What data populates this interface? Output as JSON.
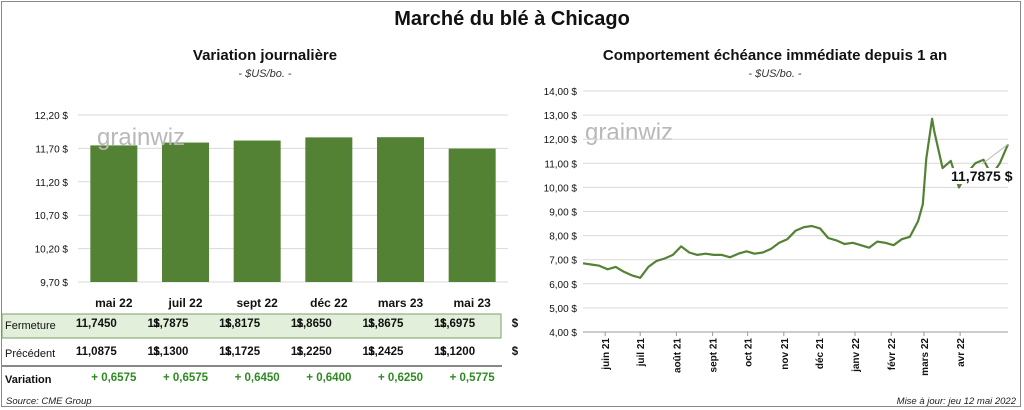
{
  "header": {
    "title": "Marché du blé à Chicago"
  },
  "left": {
    "title": "Variation  journalière",
    "unit": "- $US/bo. -"
  },
  "right": {
    "title": "Comportement  échéance immédiate depuis 1 an",
    "unit": "- $US/bo. -",
    "last_value_label": "11,7875 $"
  },
  "watermark": "grainwiz",
  "table": {
    "row_labels": [
      "Fermeture",
      "Précédent",
      "Variation"
    ],
    "fermeture": [
      "11,7450",
      "11,7875",
      "11,8175",
      "11,8650",
      "11,8675",
      "11,6975"
    ],
    "precedent": [
      "11,0875",
      "11,1300",
      "11,1725",
      "11,2250",
      "11,2425",
      "11,1200"
    ],
    "variation": [
      "+ 0,6575",
      "+ 0,6575",
      "+ 0,6450",
      "+ 0,6400",
      "+ 0,6250",
      "+ 0,5775"
    ],
    "currency": "$"
  },
  "footer": {
    "source": "Source: CME Group",
    "updated": "Mise à jour: jeu 12 mai 2022"
  },
  "colors": {
    "bar": "#548235",
    "line": "#548235",
    "table_highlight": "#e2efda"
  },
  "chart_data": [
    {
      "type": "bar",
      "categories": [
        "mai 22",
        "juil 22",
        "sept 22",
        "déc 22",
        "mars 23",
        "mai 23"
      ],
      "values": [
        11.745,
        11.7875,
        11.8175,
        11.865,
        11.8675,
        11.6975
      ],
      "ylim": [
        9.7,
        12.2
      ],
      "yticks": [
        9.7,
        10.2,
        10.7,
        11.2,
        11.7,
        12.2
      ],
      "ytick_labels": [
        "9,70 $",
        "10,20 $",
        "10,70 $",
        "11,20 $",
        "11,70 $",
        "12,20 $"
      ],
      "grid": true
    },
    {
      "type": "line",
      "ylim": [
        4,
        14
      ],
      "yticks": [
        4,
        5,
        6,
        7,
        8,
        9,
        10,
        11,
        12,
        13,
        14
      ],
      "ytick_labels": [
        "4,00 $",
        "5,00 $",
        "6,00 $",
        "7,00 $",
        "8,00 $",
        "9,00 $",
        "10,00 $",
        "11,00 $",
        "12,00 $",
        "13,00 $",
        "14,00 $"
      ],
      "xticks": [
        "juin 21",
        "juil 21",
        "août 21",
        "sept 21",
        "oct 21",
        "nov 21",
        "déc 21",
        "janv 22",
        "févr 22",
        "mars 22",
        "avr 22"
      ],
      "grid": true,
      "series": [
        {
          "x": [
            "2021-05-13",
            "2021-05-20",
            "2021-05-27",
            "2021-06-03",
            "2021-06-10",
            "2021-06-17",
            "2021-06-24",
            "2021-07-01",
            "2021-07-08",
            "2021-07-15",
            "2021-07-22",
            "2021-07-29",
            "2021-08-05",
            "2021-08-12",
            "2021-08-19",
            "2021-08-26",
            "2021-09-02",
            "2021-09-09",
            "2021-09-16",
            "2021-09-23",
            "2021-09-30",
            "2021-10-07",
            "2021-10-14",
            "2021-10-21",
            "2021-10-28",
            "2021-11-04",
            "2021-11-11",
            "2021-11-18",
            "2021-11-25",
            "2021-12-02",
            "2021-12-09",
            "2021-12-16",
            "2021-12-23",
            "2021-12-30",
            "2022-01-06",
            "2022-01-13",
            "2022-01-20",
            "2022-01-27",
            "2022-02-03",
            "2022-02-10",
            "2022-02-17",
            "2022-02-24",
            "2022-02-28",
            "2022-03-03",
            "2022-03-08",
            "2022-03-10",
            "2022-03-17",
            "2022-03-24",
            "2022-03-31",
            "2022-04-07",
            "2022-04-14",
            "2022-04-21",
            "2022-04-28",
            "2022-05-05",
            "2022-05-12"
          ],
          "y": [
            6.85,
            6.8,
            6.75,
            6.6,
            6.7,
            6.5,
            6.35,
            6.25,
            6.7,
            6.95,
            7.05,
            7.2,
            7.55,
            7.3,
            7.2,
            7.25,
            7.2,
            7.2,
            7.1,
            7.25,
            7.35,
            7.25,
            7.3,
            7.45,
            7.7,
            7.85,
            8.2,
            8.35,
            8.4,
            8.3,
            7.9,
            7.8,
            7.65,
            7.7,
            7.6,
            7.5,
            7.75,
            7.7,
            7.6,
            7.85,
            7.95,
            8.6,
            9.3,
            11.2,
            12.85,
            12.3,
            10.8,
            11.1,
            10.0,
            10.6,
            11.0,
            11.15,
            10.5,
            11.0,
            11.7875
          ]
        }
      ]
    }
  ]
}
